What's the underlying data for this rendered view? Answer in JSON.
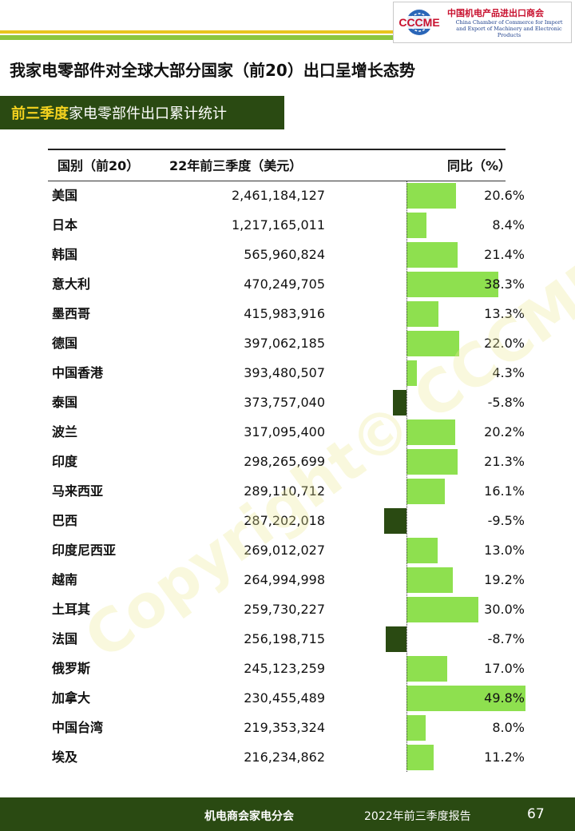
{
  "header": {
    "logo_mark_text": "CCCME",
    "org_name_cn": "中国机电产品进出口商会",
    "org_name_en_line1": "China Chamber of Commerce for Import",
    "org_name_en_line2": "and Export of Machinery and Electronic Products"
  },
  "title": "我家电零部件对全球大部分国家（前20）出口呈增长态势",
  "subtitle": {
    "highlight": "前三季度",
    "rest": "家电零部件出口累计统计"
  },
  "table": {
    "headers": {
      "country": "国别（前20）",
      "value": "22年前三季度（美元）",
      "yoy": "同比（%）"
    }
  },
  "chart_data": {
    "type": "table",
    "columns": [
      "国别（前20）",
      "22年前三季度（美元）",
      "同比（%）"
    ],
    "rows": [
      {
        "country": "美国",
        "value": "2,461,184,127",
        "yoy": 20.6,
        "yoy_label": "20.6%"
      },
      {
        "country": "日本",
        "value": "1,217,165,011",
        "yoy": 8.4,
        "yoy_label": "8.4%"
      },
      {
        "country": "韩国",
        "value": "565,960,824",
        "yoy": 21.4,
        "yoy_label": "21.4%"
      },
      {
        "country": "意大利",
        "value": "470,249,705",
        "yoy": 38.3,
        "yoy_label": "38.3%"
      },
      {
        "country": "墨西哥",
        "value": "415,983,916",
        "yoy": 13.3,
        "yoy_label": "13.3%"
      },
      {
        "country": "德国",
        "value": "397,062,185",
        "yoy": 22.0,
        "yoy_label": "22.0%"
      },
      {
        "country": "中国香港",
        "value": "393,480,507",
        "yoy": 4.3,
        "yoy_label": "4.3%"
      },
      {
        "country": "泰国",
        "value": "373,757,040",
        "yoy": -5.8,
        "yoy_label": "-5.8%"
      },
      {
        "country": "波兰",
        "value": "317,095,400",
        "yoy": 20.2,
        "yoy_label": "20.2%"
      },
      {
        "country": "印度",
        "value": "298,265,699",
        "yoy": 21.3,
        "yoy_label": "21.3%"
      },
      {
        "country": "马来西亚",
        "value": "289,110,712",
        "yoy": 16.1,
        "yoy_label": "16.1%"
      },
      {
        "country": "巴西",
        "value": "287,202,018",
        "yoy": -9.5,
        "yoy_label": "-9.5%"
      },
      {
        "country": "印度尼西亚",
        "value": "269,012,027",
        "yoy": 13.0,
        "yoy_label": "13.0%"
      },
      {
        "country": "越南",
        "value": "264,994,998",
        "yoy": 19.2,
        "yoy_label": "19.2%"
      },
      {
        "country": "土耳其",
        "value": "259,730,227",
        "yoy": 30.0,
        "yoy_label": "30.0%"
      },
      {
        "country": "法国",
        "value": "256,198,715",
        "yoy": -8.7,
        "yoy_label": "-8.7%"
      },
      {
        "country": "俄罗斯",
        "value": "245,123,259",
        "yoy": 17.0,
        "yoy_label": "17.0%"
      },
      {
        "country": "加拿大",
        "value": "230,455,489",
        "yoy": 49.8,
        "yoy_label": "49.8%"
      },
      {
        "country": "中国台湾",
        "value": "219,353,324",
        "yoy": 8.0,
        "yoy_label": "8.0%"
      },
      {
        "country": "埃及",
        "value": "216,234,862",
        "yoy": 11.2,
        "yoy_label": "11.2%"
      }
    ],
    "bar_colors": {
      "positive": "#8ee04f",
      "negative": "#2a4a12"
    }
  },
  "watermark": "Copyright© CCCME",
  "footer": {
    "org": "机电商会家电分会",
    "report": "2022年前三季度报告",
    "page": "67",
    "background": "#2a4a12"
  }
}
